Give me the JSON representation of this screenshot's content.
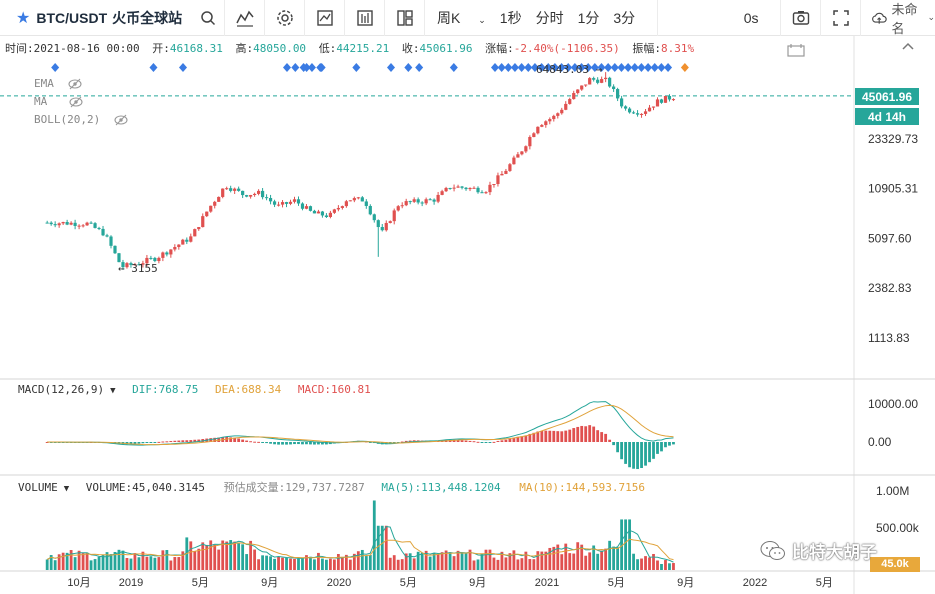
{
  "toolbar": {
    "symbol": "BTC/USDT",
    "exchange": "火币全球站",
    "intervals": [
      {
        "label": "周K",
        "active": true
      },
      {
        "label": "1秒",
        "active": false
      },
      {
        "label": "分时",
        "active": false
      },
      {
        "label": "1分",
        "active": false
      },
      {
        "label": "3分",
        "active": false
      }
    ],
    "countdown": "0s",
    "layout_name": "未命名",
    "icons": [
      "star-icon",
      "search-icon",
      "indicator-icon",
      "settings-icon",
      "compare-icon",
      "template-icon",
      "layout-icon",
      "screenshot-icon",
      "fullscreen-icon",
      "cloud-save-icon"
    ]
  },
  "info": {
    "time_label": "时间:",
    "time": "2021-08-16 00:00",
    "open_label": "开:",
    "open": "46168.31",
    "high_label": "高:",
    "high": "48050.00",
    "low_label": "低:",
    "low": "44215.21",
    "close_label": "收:",
    "close": "45061.96",
    "change_label": "涨幅:",
    "change": "-2.40%(-1106.35)",
    "amplitude_label": "振幅:",
    "amplitude": "8.31%"
  },
  "indicators": [
    {
      "label": "EMA"
    },
    {
      "label": "MA"
    },
    {
      "label": "BOLL(20,2)"
    }
  ],
  "price_axis": {
    "labels": [
      "23329.73",
      "10905.31",
      "5097.60",
      "2382.83",
      "1113.83"
    ],
    "current_price": "45061.96",
    "countdown": "4d 14h"
  },
  "annotations": {
    "high": "64843.03 →",
    "low": "← 3155"
  },
  "macd": {
    "label": "MACD(12,26,9)",
    "dif": "DIF:768.75",
    "dea": "DEA:688.34",
    "macd": "MACD:160.81",
    "axis": [
      "10000.00",
      "0.00"
    ]
  },
  "volume": {
    "label": "VOLUME",
    "value": "VOLUME:45,040.3145",
    "estimate": "预估成交量:129,737.7287",
    "ma5": "MA(5):113,448.1204",
    "ma10": "MA(10):144,593.7156",
    "axis": [
      "1.00M",
      "500.00k"
    ],
    "tag": "45.0k"
  },
  "x_axis": [
    "10月",
    "2019",
    "5月",
    "9月",
    "2020",
    "5月",
    "9月",
    "2021",
    "5月",
    "9月",
    "2022",
    "5月"
  ],
  "watermark": "比特大胡子",
  "colors": {
    "up": "#e0504f",
    "down": "#26a69a",
    "accent": "#2a71d9",
    "dea": "#e0a23a",
    "marker_blue": "#3a7be3",
    "marker_orange": "#f0902e"
  },
  "chart_data": {
    "type": "candlestick",
    "symbol": "BTC/USDT",
    "interval": "weekly",
    "scale": "log",
    "price_anchors": [
      {
        "date": "2018-08",
        "price": 6500
      },
      {
        "date": "2018-10",
        "price": 6400
      },
      {
        "date": "2018-11",
        "price": 5500
      },
      {
        "date": "2018-12",
        "price": 3300
      },
      {
        "date": "2019-01",
        "price": 3500
      },
      {
        "date": "2019-02",
        "price": 3800
      },
      {
        "date": "2019-04",
        "price": 5200
      },
      {
        "date": "2019-05",
        "price": 8000
      },
      {
        "date": "2019-06",
        "price": 11500
      },
      {
        "date": "2019-07",
        "price": 10000
      },
      {
        "date": "2019-08",
        "price": 10200
      },
      {
        "date": "2019-09",
        "price": 8300
      },
      {
        "date": "2019-10",
        "price": 9100
      },
      {
        "date": "2019-11",
        "price": 7500
      },
      {
        "date": "2019-12",
        "price": 7200
      },
      {
        "date": "2020-01",
        "price": 9300
      },
      {
        "date": "2020-02",
        "price": 9200
      },
      {
        "date": "2020-03",
        "price": 5500
      },
      {
        "date": "2020-04",
        "price": 8700
      },
      {
        "date": "2020-06",
        "price": 9200
      },
      {
        "date": "2020-07",
        "price": 11300
      },
      {
        "date": "2020-09",
        "price": 10700
      },
      {
        "date": "2020-10",
        "price": 13800
      },
      {
        "date": "2020-11",
        "price": 19000
      },
      {
        "date": "2020-12",
        "price": 29000
      },
      {
        "date": "2021-01",
        "price": 33000
      },
      {
        "date": "2021-02",
        "price": 45000
      },
      {
        "date": "2021-03",
        "price": 58000
      },
      {
        "date": "2021-04",
        "price": 57000
      },
      {
        "date": "2021-05",
        "price": 37000
      },
      {
        "date": "2021-06",
        "price": 35000
      },
      {
        "date": "2021-07",
        "price": 42000
      },
      {
        "date": "2021-08",
        "price": 45061.96
      }
    ],
    "high_marker": 64843.03,
    "low_marker": 3155
  }
}
